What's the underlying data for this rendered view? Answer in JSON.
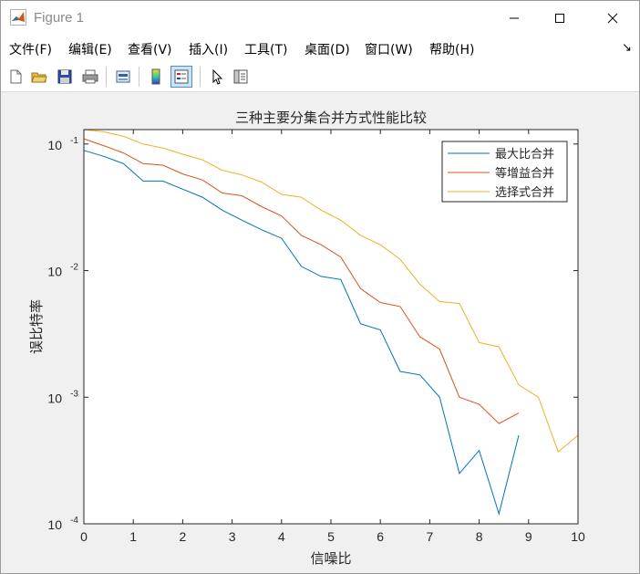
{
  "window": {
    "title": "Figure 1"
  },
  "menu": [
    "文件(F)",
    "编辑(E)",
    "查看(V)",
    "插入(I)",
    "工具(T)",
    "桌面(D)",
    "窗口(W)",
    "帮助(H)"
  ],
  "toolbar": [
    "new-file-icon",
    "open-folder-icon",
    "save-icon",
    "print-icon",
    "print-preview-icon",
    "colorbar-icon",
    "legend-icon",
    "pointer-icon",
    "property-inspector-icon"
  ],
  "chart_data": {
    "type": "line",
    "title": "三种主要分集合并方式性能比较",
    "xlabel": "信噪比",
    "ylabel": "误比特率",
    "xlim": [
      0,
      10
    ],
    "ylim": [
      0.0001,
      0.13
    ],
    "yscale": "log",
    "grid": false,
    "legend_position": "top-right",
    "x_ticks": [
      "0",
      "1",
      "2",
      "3",
      "4",
      "5",
      "6",
      "7",
      "8",
      "9",
      "10"
    ],
    "y_ticks": [
      {
        "value": 0.1,
        "base": "10",
        "exp": "-1"
      },
      {
        "value": 0.01,
        "base": "10",
        "exp": "-2"
      },
      {
        "value": 0.001,
        "base": "10",
        "exp": "-3"
      },
      {
        "value": 0.0001,
        "base": "10",
        "exp": "-4"
      }
    ],
    "series": [
      {
        "name": "最大比合并",
        "color": "#0072bd",
        "x": [
          0,
          0.4,
          0.8,
          1.2,
          1.6,
          2.0,
          2.4,
          2.8,
          3.2,
          3.6,
          4.0,
          4.4,
          4.8,
          5.2,
          5.6,
          6.0,
          6.4,
          6.8,
          7.2,
          7.6,
          8.0,
          8.4,
          8.8
        ],
        "y": [
          0.089,
          0.08,
          0.07,
          0.051,
          0.051,
          0.044,
          0.038,
          0.03,
          0.025,
          0.021,
          0.018,
          0.0108,
          0.009,
          0.0085,
          0.0038,
          0.0034,
          0.0016,
          0.0015,
          0.001,
          0.00025,
          0.00038,
          0.00012,
          0.0005
        ]
      },
      {
        "name": "等增益合并",
        "color": "#d95319",
        "x": [
          0,
          0.4,
          0.8,
          1.2,
          1.6,
          2.0,
          2.4,
          2.8,
          3.2,
          3.6,
          4.0,
          4.4,
          4.8,
          5.2,
          5.6,
          6.0,
          6.4,
          6.8,
          7.2,
          7.6,
          8.0,
          8.4,
          8.8
        ],
        "y": [
          0.11,
          0.097,
          0.085,
          0.07,
          0.068,
          0.058,
          0.052,
          0.041,
          0.039,
          0.032,
          0.027,
          0.019,
          0.016,
          0.0128,
          0.0072,
          0.0056,
          0.0052,
          0.003,
          0.0024,
          0.001,
          0.00088,
          0.00062,
          0.00075
        ]
      },
      {
        "name": "选择式合并",
        "color": "#edb120",
        "x": [
          0,
          0.4,
          0.8,
          1.2,
          1.6,
          2.0,
          2.4,
          2.8,
          3.2,
          3.6,
          4.0,
          4.4,
          4.8,
          5.2,
          5.6,
          6.0,
          6.4,
          6.8,
          7.2,
          7.6,
          8.0,
          8.4,
          8.8,
          9.2,
          9.6,
          10.0
        ],
        "y": [
          0.13,
          0.125,
          0.115,
          0.1,
          0.093,
          0.083,
          0.075,
          0.062,
          0.057,
          0.05,
          0.04,
          0.038,
          0.03,
          0.025,
          0.019,
          0.016,
          0.0123,
          0.0078,
          0.0057,
          0.0055,
          0.0027,
          0.0025,
          0.00125,
          0.001,
          0.00037,
          0.0005
        ]
      }
    ]
  }
}
